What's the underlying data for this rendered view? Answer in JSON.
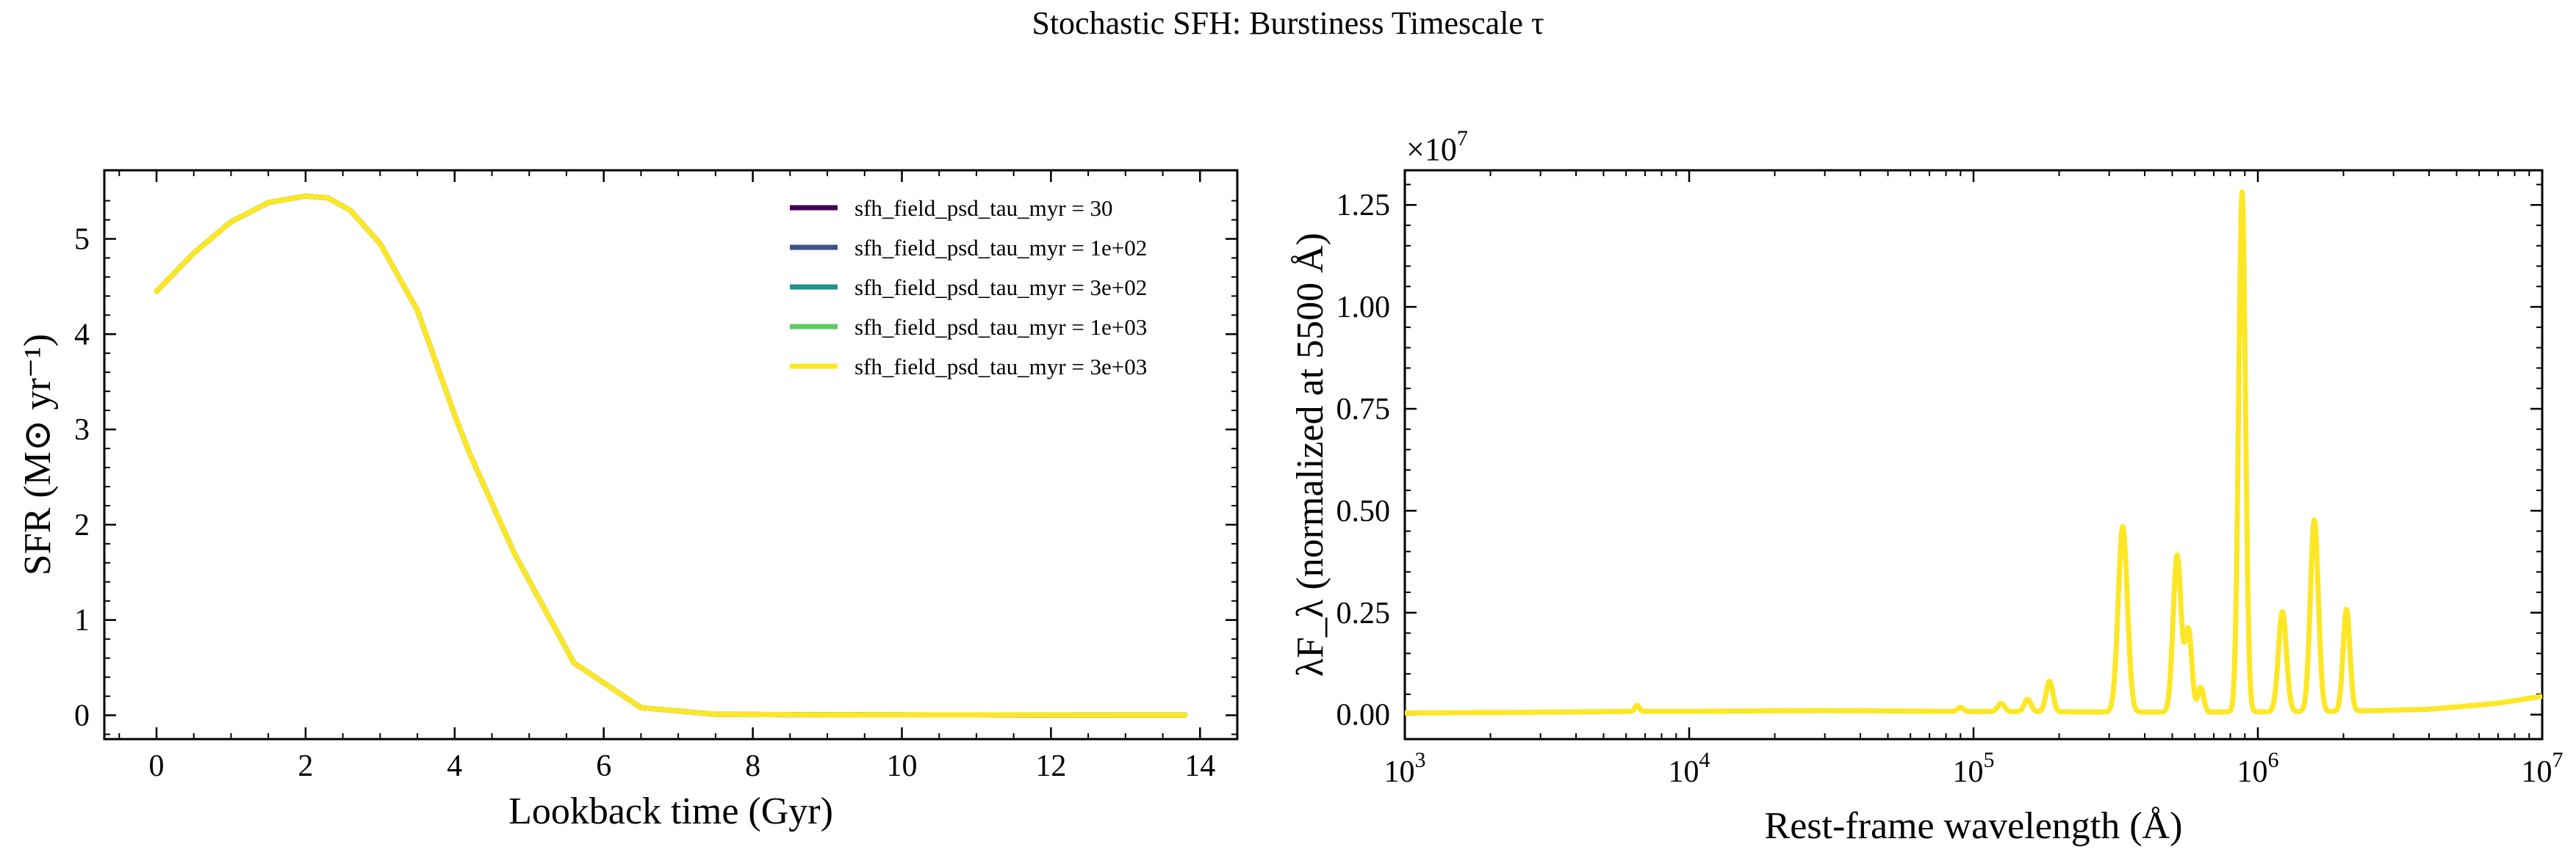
{
  "figure": {
    "title": "Stochastic SFH: Burstiness Timescale τ"
  },
  "chart_data": [
    {
      "type": "line",
      "name": "sfh",
      "xlabel": "Lookback time (Gyr)",
      "ylabel": "SFR (M⊙ yr⁻¹)",
      "xlim": [
        -0.7,
        14.5
      ],
      "ylim": [
        -0.25,
        5.72
      ],
      "xticks": [
        0,
        2,
        4,
        6,
        8,
        10,
        12,
        14
      ],
      "yticks": [
        0,
        1,
        2,
        3,
        4,
        5
      ],
      "grid": false,
      "legend_position": "top-right",
      "series": [
        {
          "name": "sfh_field_psd_tau_myr = 30",
          "color": "#440154"
        },
        {
          "name": "sfh_field_psd_tau_myr = 1e+02",
          "color": "#3b528b"
        },
        {
          "name": "sfh_field_psd_tau_myr = 3e+02",
          "color": "#21918c"
        },
        {
          "name": "sfh_field_psd_tau_myr = 1e+03",
          "color": "#5ec962"
        },
        {
          "name": "sfh_field_psd_tau_myr = 3e+03",
          "color": "#fde725"
        }
      ],
      "x": [
        0,
        0.5,
        1.0,
        1.5,
        2.0,
        2.3,
        2.6,
        3.0,
        3.5,
        4.0,
        4.2,
        4.8,
        5.6,
        6.5,
        7.5,
        9,
        11,
        13,
        13.8
      ],
      "values": [
        4.45,
        4.85,
        5.18,
        5.38,
        5.45,
        5.43,
        5.3,
        4.95,
        4.25,
        3.15,
        2.75,
        1.7,
        0.55,
        0.08,
        0.01,
        0.005,
        0.004,
        0.003,
        0.003
      ]
    },
    {
      "type": "line",
      "name": "sed",
      "xlabel": "Rest-frame wavelength (Å)",
      "ylabel": "λF_λ (normalized at 5500 Å)",
      "xscale": "log",
      "xlim": [
        1000,
        10000000
      ],
      "ylim": [
        -0.06,
        1.335
      ],
      "y_multiplier_label": "×10",
      "y_multiplier_exponent": "7",
      "xticks": [
        1000,
        10000,
        100000,
        1000000,
        10000000
      ],
      "xtick_labels": [
        {
          "base": "10",
          "exp": "3"
        },
        {
          "base": "10",
          "exp": "4"
        },
        {
          "base": "10",
          "exp": "5"
        },
        {
          "base": "10",
          "exp": "6"
        },
        {
          "base": "10",
          "exp": "7"
        }
      ],
      "yticks": [
        0.0,
        0.25,
        0.5,
        0.75,
        1.0,
        1.25
      ],
      "ytick_labels": [
        "0.00",
        "0.25",
        "0.50",
        "0.75",
        "1.00",
        "1.25"
      ],
      "grid": false,
      "line_color": "#fde725",
      "baseline": [
        [
          1000,
          0.004
        ],
        [
          3000,
          0.006
        ],
        [
          6500,
          0.008
        ],
        [
          10000,
          0.008
        ],
        [
          30000,
          0.01
        ],
        [
          80000,
          0.008
        ],
        [
          200000,
          0.007
        ],
        [
          500000,
          0.006
        ],
        [
          1000000,
          0.007
        ],
        [
          2000000,
          0.008
        ],
        [
          4000000,
          0.013
        ],
        [
          7000000,
          0.028
        ],
        [
          10000000,
          0.045
        ]
      ],
      "peaks": [
        {
          "x": 6563,
          "y": 0.015,
          "w": 0.008
        },
        {
          "x": 90000,
          "y": 0.01,
          "w": 0.01
        },
        {
          "x": 125000,
          "y": 0.02,
          "w": 0.012
        },
        {
          "x": 155000,
          "y": 0.03,
          "w": 0.012
        },
        {
          "x": 185000,
          "y": 0.075,
          "w": 0.012
        },
        {
          "x": 335000,
          "y": 0.455,
          "w": 0.016
        },
        {
          "x": 520000,
          "y": 0.385,
          "w": 0.014
        },
        {
          "x": 570000,
          "y": 0.2,
          "w": 0.012
        },
        {
          "x": 630000,
          "y": 0.06,
          "w": 0.01
        },
        {
          "x": 880000,
          "y": 1.275,
          "w": 0.012
        },
        {
          "x": 1220000,
          "y": 0.245,
          "w": 0.014
        },
        {
          "x": 1580000,
          "y": 0.47,
          "w": 0.014
        },
        {
          "x": 2050000,
          "y": 0.25,
          "w": 0.012
        }
      ]
    }
  ]
}
